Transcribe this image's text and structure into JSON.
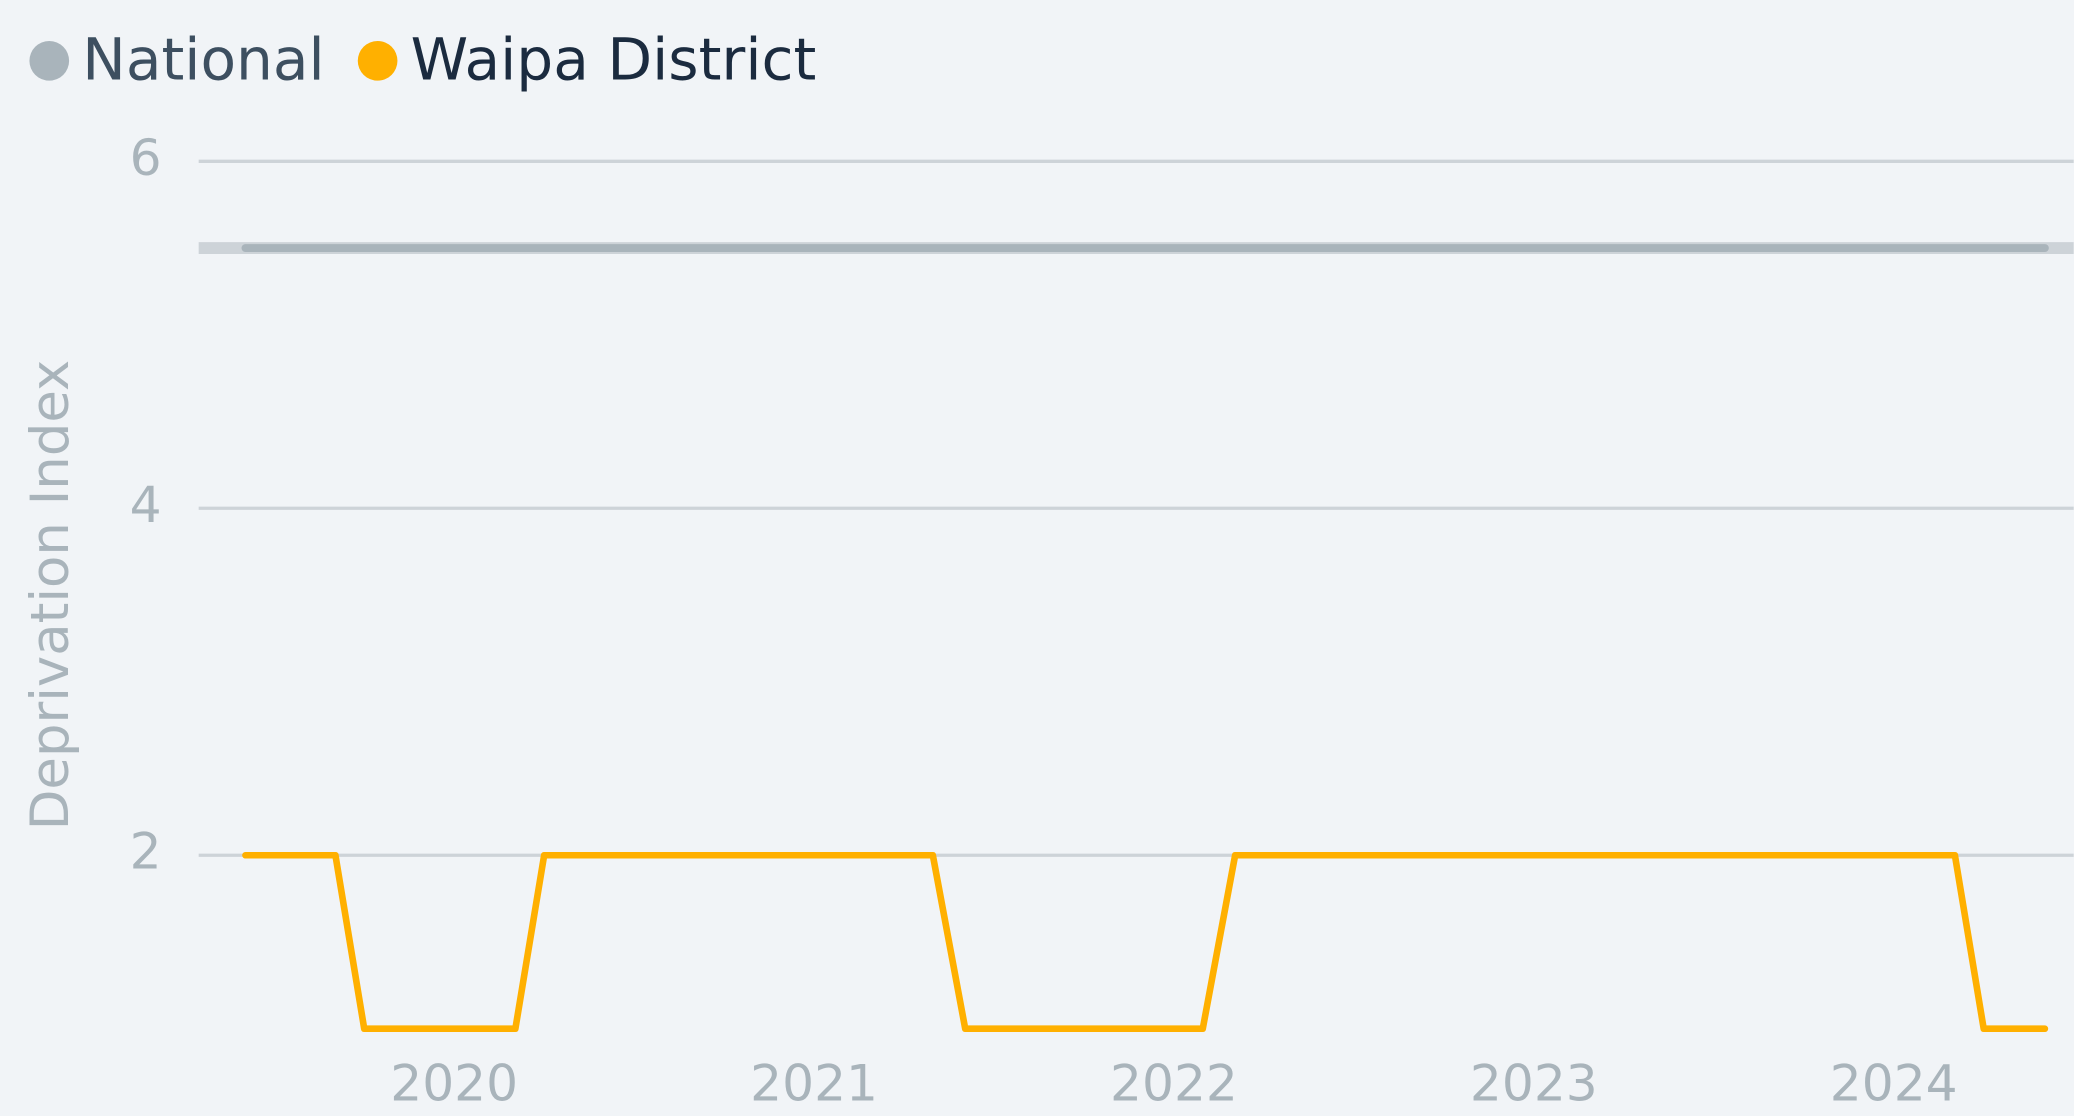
{
  "chart_data": {
    "type": "line",
    "ylabel": "Deprivation Index",
    "xlim": [
      2019.29,
      2024.5
    ],
    "xticks": [
      2020,
      2021,
      2022,
      2023,
      2024
    ],
    "ylim": [
      1,
      6
    ],
    "yticks": [
      2,
      4,
      6
    ],
    "grid": true,
    "legend": "top-left",
    "series": [
      {
        "name": "National",
        "color": "#a9b4bb",
        "x": [
          2019.42,
          2024.42
        ],
        "values": [
          5.5,
          5.5
        ]
      },
      {
        "name": "Waipa District",
        "color": "#ffb000",
        "x": [
          2019.42,
          2019.67,
          2019.75,
          2020.17,
          2020.25,
          2021.33,
          2021.42,
          2022.08,
          2022.17,
          2024.17,
          2024.25,
          2024.42
        ],
        "values": [
          2,
          2,
          1,
          1,
          2,
          2,
          1,
          1,
          2,
          2,
          1,
          1
        ]
      }
    ]
  }
}
